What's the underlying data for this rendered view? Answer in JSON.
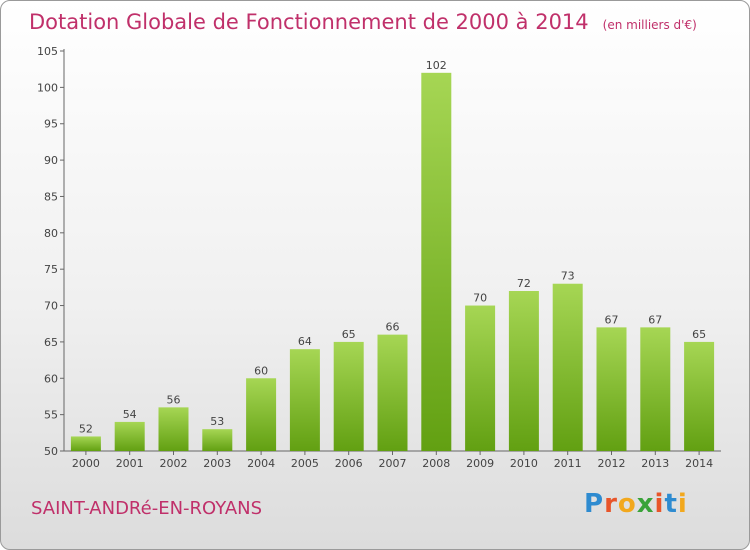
{
  "header": {
    "title": "Dotation Globale de Fonctionnement de 2000 à 2014",
    "subtitle": "(en milliers d'€)"
  },
  "footer": {
    "commune": "SAINT-ANDRé-EN-ROYANS",
    "logo": "Proxiti"
  },
  "colors": {
    "title": "#c0306a",
    "bar_light": "#a6d654",
    "bar_dark": "#62a012"
  },
  "chart_data": {
    "type": "bar",
    "title": "Dotation Globale de Fonctionnement de 2000 à 2014",
    "xlabel": "",
    "ylabel": "",
    "categories": [
      "2000",
      "2001",
      "2002",
      "2003",
      "2004",
      "2005",
      "2006",
      "2007",
      "2008",
      "2009",
      "2010",
      "2011",
      "2012",
      "2013",
      "2014"
    ],
    "values": [
      52,
      54,
      56,
      53,
      60,
      64,
      65,
      66,
      102,
      70,
      72,
      73,
      67,
      67,
      65
    ],
    "ylim": [
      50,
      105
    ],
    "yticks": [
      50,
      55,
      60,
      65,
      70,
      75,
      80,
      85,
      90,
      95,
      100,
      105
    ],
    "grid": false
  }
}
